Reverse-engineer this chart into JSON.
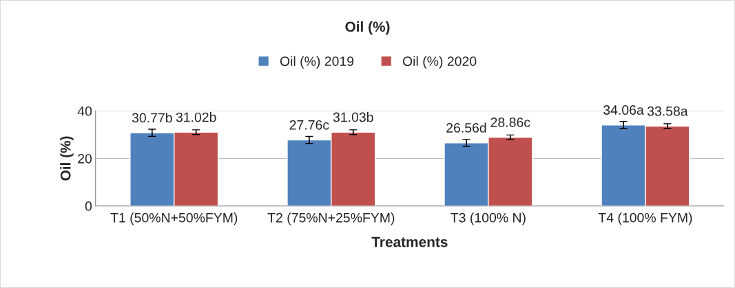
{
  "chart_data": {
    "type": "bar",
    "title": "Oil (%)",
    "xlabel": "Treatments",
    "ylabel": "Oil (%)",
    "categories": [
      "T1 (50%N+50%FYM)",
      "T2 (75%N+25%FYM)",
      "T3 (100% N)",
      "T4 (100% FYM)"
    ],
    "series": [
      {
        "name": "Oil (%) 2019",
        "color": "#4f81bd",
        "values": [
          30.77,
          27.76,
          26.56,
          34.06
        ],
        "errors": [
          1.5,
          1.5,
          1.5,
          1.5
        ],
        "value_labels": [
          "30.77b",
          "27.76c",
          "26.56d",
          "34.06a"
        ]
      },
      {
        "name": "Oil (%) 2020",
        "color": "#c0504d",
        "values": [
          31.02,
          31.03,
          28.86,
          33.58
        ],
        "errors": [
          1.0,
          1.0,
          1.0,
          1.0
        ],
        "value_labels": [
          "31.02b",
          "31.03b",
          "28.86c",
          "33.58a"
        ]
      }
    ],
    "ylim": [
      0,
      40
    ],
    "yticks": [
      0,
      20,
      40
    ],
    "grid": "y",
    "legend": "top"
  }
}
